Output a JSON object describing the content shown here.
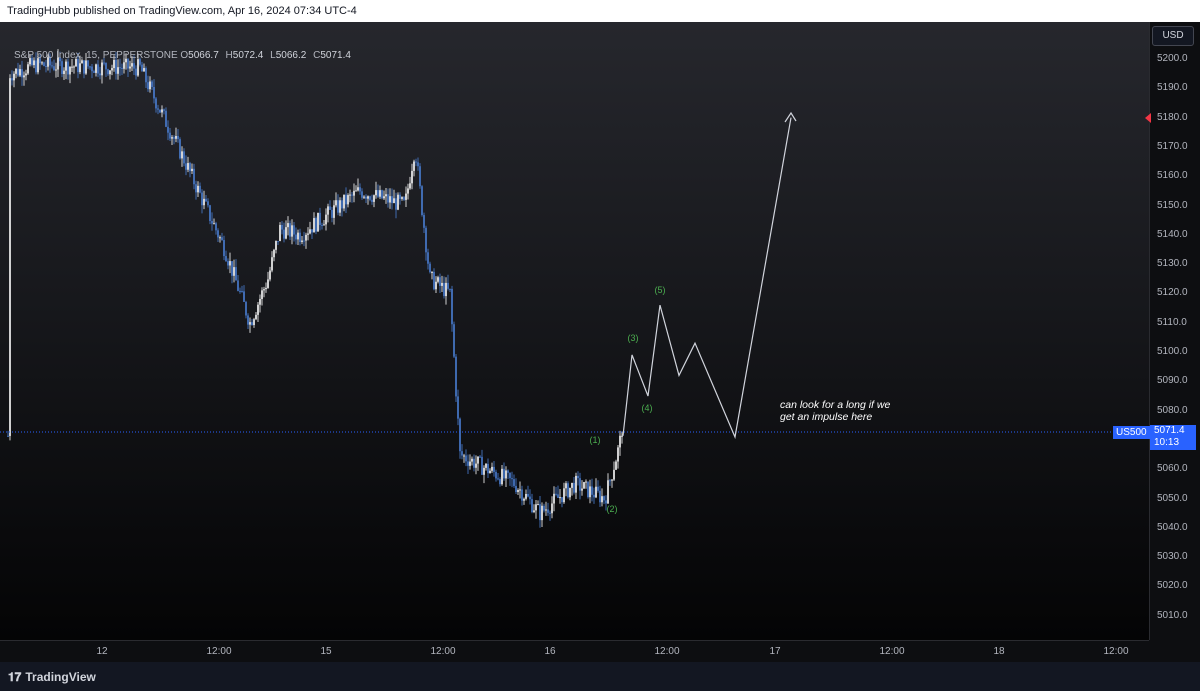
{
  "header": {
    "publisher": "TradingHubb published on TradingView.com, Apr 16, 2024 07:34 UTC-4"
  },
  "legend": {
    "symbol": "S&P 500 Index, 15, PEPPERSTONE",
    "open_label": "O",
    "open": "5066.7",
    "high_label": "H",
    "high": "5072.4",
    "low_label": "L",
    "low": "5066.2",
    "close_label": "C",
    "close": "5071.4"
  },
  "price_axis": {
    "currency": "USD",
    "ticks": [
      "5200.0",
      "5190.0",
      "5180.0",
      "5170.0",
      "5160.0",
      "5150.0",
      "5140.0",
      "5130.0",
      "5120.0",
      "5110.0",
      "5100.0",
      "5090.0",
      "5080.0",
      "5060.0",
      "5050.0",
      "5040.0",
      "5030.0",
      "5020.0",
      "5010.0"
    ],
    "last_price": "5071.4",
    "countdown": "10:13",
    "symbol_short": "US500"
  },
  "time_axis": {
    "ticks": [
      "12",
      "12:00",
      "15",
      "12:00",
      "16",
      "12:00",
      "17",
      "12:00",
      "18",
      "12:00"
    ]
  },
  "annotations": {
    "waves": [
      "(1)",
      "(2)",
      "(3)",
      "(4)",
      "(5)"
    ],
    "note_line1": "can look for a long if we",
    "note_line2": "get an impulse here"
  },
  "footer": {
    "brand": "TradingView"
  },
  "colors": {
    "candle_up": "#ffffff",
    "candle_down": "#4a7fd4",
    "wave_label": "#4caf50",
    "price_line": "#2962ff",
    "projection": "#d1d4dc"
  },
  "chart_data": {
    "type": "candlestick",
    "symbol": "S&P 500 Index, 15, PEPPERSTONE",
    "y_range": [
      5002,
      5207
    ],
    "last_close": 5071.4,
    "path_keypoints": [
      {
        "t": "Apr 11 ~23:00",
        "price": 5195
      },
      {
        "t": "Apr 12 ~02:00",
        "price": 5198
      },
      {
        "t": "Apr 12 ~09:30",
        "price": 5197
      },
      {
        "t": "Apr 12 ~13:30",
        "price": 5110
      },
      {
        "t": "Apr 12 ~15:00",
        "price": 5125
      },
      {
        "t": "Apr 15 ~00:00",
        "price": 5140
      },
      {
        "t": "Apr 15 ~05:00",
        "price": 5155
      },
      {
        "t": "Apr 15 ~08:30",
        "price": 5170
      },
      {
        "t": "Apr 15 ~11:30",
        "price": 5125
      },
      {
        "t": "Apr 15 ~13:30",
        "price": 5065
      },
      {
        "t": "Apr 16 ~01:00",
        "price": 5055
      },
      {
        "t": "Apr 16 ~02:00",
        "price": 5045
      },
      {
        "t": "Apr 16 ~07:30",
        "price": 5071.4
      }
    ],
    "projection": [
      5071.4,
      5099,
      5085,
      5116,
      5092,
      5103,
      5071,
      5180
    ],
    "wave_labels": [
      {
        "label": "(1)",
        "price": 5065
      },
      {
        "label": "(2)",
        "price": 5048
      },
      {
        "label": "(3)",
        "price": 5102
      },
      {
        "label": "(4)",
        "price": 5083
      },
      {
        "label": "(5)",
        "price": 5118
      }
    ]
  }
}
